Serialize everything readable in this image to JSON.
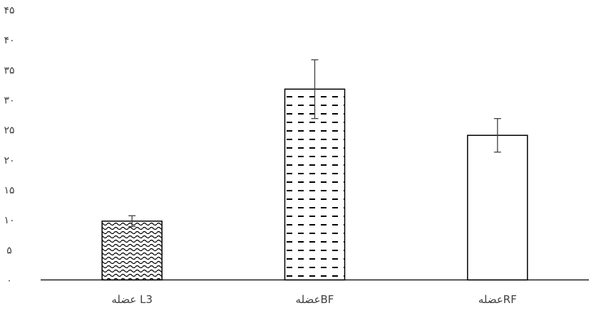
{
  "chart_data": {
    "type": "bar",
    "categories": [
      "عضله L3",
      "عضلهBF",
      "عضلهRF"
    ],
    "values": [
      9.8,
      31.8,
      24.1
    ],
    "error_bars": [
      0.9,
      4.9,
      2.8
    ],
    "bar_patterns": [
      "wave",
      "dash",
      "none"
    ],
    "ylim": [
      0,
      45
    ],
    "yticks": [
      0,
      5,
      10,
      15,
      20,
      25,
      30,
      35,
      40,
      45
    ],
    "ytick_labels": [
      "۰",
      "۵",
      "۱۰",
      "۱۵",
      "۲۰",
      "۲۵",
      "۳۰",
      "۳۵",
      "۴۰",
      "۴۵"
    ],
    "title": "",
    "xlabel": "",
    "ylabel": "",
    "grid": false,
    "colors": {
      "bar_fill": "#ffffff",
      "bar_stroke": "#000000",
      "pattern": "#000000",
      "axis": "#000000",
      "error_bar": "#404040",
      "text": "#404040"
    }
  }
}
